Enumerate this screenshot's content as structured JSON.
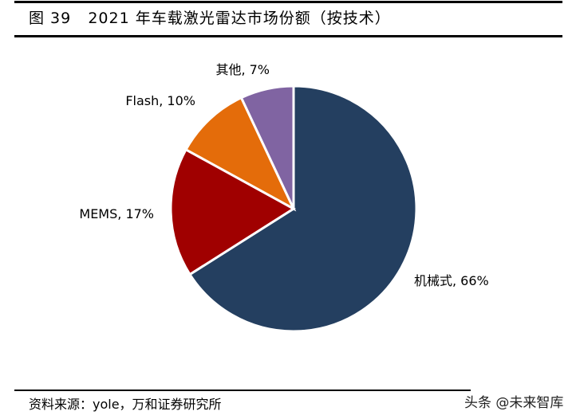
{
  "title": "图 39   2021 年车载激光雷达市场份额（按技术）",
  "source": "资料来源：yole，万和证券研究所",
  "watermark": "头条 @未来智库",
  "chart_data": {
    "type": "pie",
    "start_angle": "12 o'clock",
    "direction": "clockwise",
    "slices": [
      {
        "name": "机械式",
        "value": 66,
        "label": "机械式, 66%",
        "color": "#243F60"
      },
      {
        "name": "MEMS",
        "value": 17,
        "label": "MEMS, 17%",
        "color": "#A00000"
      },
      {
        "name": "Flash",
        "value": 10,
        "label": "Flash, 10%",
        "color": "#E46C0A"
      },
      {
        "name": "其他",
        "value": 7,
        "label": "其他, 7%",
        "color": "#8064A2"
      }
    ]
  }
}
